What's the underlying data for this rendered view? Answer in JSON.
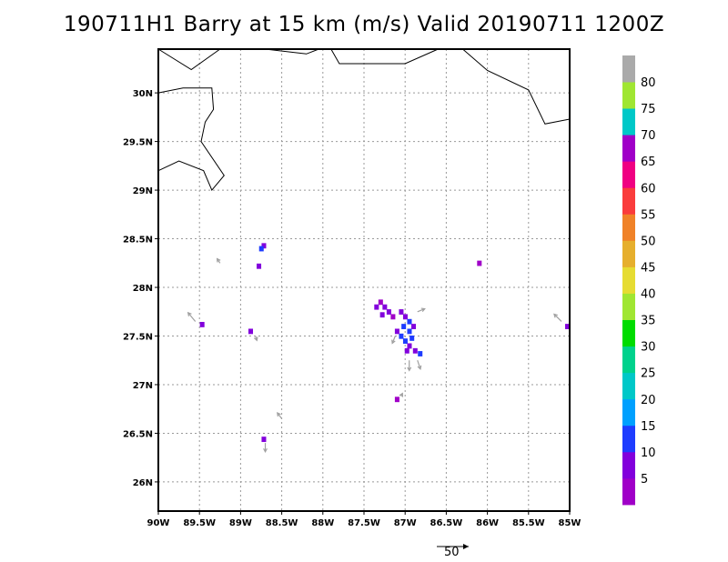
{
  "title": "190711H1 Barry at 15 km (m/s) Valid 20190711 1200Z",
  "map": {
    "lon_range": [
      -90.0,
      -85.0
    ],
    "lat_range": [
      25.7,
      30.45
    ],
    "grid": true,
    "lon_ticks": [
      {
        "value": -90.0,
        "label": "90W"
      },
      {
        "value": -89.5,
        "label": "89.5W"
      },
      {
        "value": -89.0,
        "label": "89W"
      },
      {
        "value": -88.5,
        "label": "88.5W"
      },
      {
        "value": -88.0,
        "label": "88W"
      },
      {
        "value": -87.5,
        "label": "87.5W"
      },
      {
        "value": -87.0,
        "label": "87W"
      },
      {
        "value": -86.5,
        "label": "86.5W"
      },
      {
        "value": -86.0,
        "label": "86W"
      },
      {
        "value": -85.5,
        "label": "85.5W"
      },
      {
        "value": -85.0,
        "label": "85W"
      }
    ],
    "lat_ticks": [
      {
        "value": 26.0,
        "label": "26N"
      },
      {
        "value": 26.5,
        "label": "26.5N"
      },
      {
        "value": 27.0,
        "label": "27N"
      },
      {
        "value": 27.5,
        "label": "27.5N"
      },
      {
        "value": 28.0,
        "label": "28N"
      },
      {
        "value": 28.5,
        "label": "28.5N"
      },
      {
        "value": 29.0,
        "label": "29N"
      },
      {
        "value": 29.5,
        "label": "29.5N"
      },
      {
        "value": 30.0,
        "label": "30N"
      }
    ],
    "coastlines": [
      [
        [
          -90.0,
          30.45
        ],
        [
          -89.6,
          30.24
        ],
        [
          -89.25,
          30.45
        ]
      ],
      [
        [
          -88.7,
          30.45
        ],
        [
          -88.2,
          30.4
        ],
        [
          -88.05,
          30.45
        ]
      ],
      [
        [
          -87.9,
          30.45
        ],
        [
          -87.8,
          30.3
        ],
        [
          -87.0,
          30.3
        ],
        [
          -86.6,
          30.45
        ]
      ],
      [
        [
          -86.3,
          30.45
        ],
        [
          -86.0,
          30.23
        ],
        [
          -85.5,
          30.03
        ],
        [
          -85.3,
          29.68
        ],
        [
          -85.0,
          29.73
        ]
      ],
      [
        [
          -90.0,
          30.0
        ],
        [
          -89.7,
          30.05
        ],
        [
          -89.35,
          30.05
        ],
        [
          -89.33,
          29.83
        ],
        [
          -89.43,
          29.7
        ],
        [
          -89.48,
          29.5
        ],
        [
          -89.2,
          29.15
        ],
        [
          -89.35,
          29.0
        ],
        [
          -89.45,
          29.2
        ],
        [
          -89.75,
          29.3
        ],
        [
          -90.0,
          29.2
        ]
      ]
    ],
    "wind_cells": [
      {
        "lon": -87.3,
        "lat": 27.85,
        "v": 4
      },
      {
        "lon": -87.25,
        "lat": 27.8,
        "v": 6
      },
      {
        "lon": -87.35,
        "lat": 27.8,
        "v": 7
      },
      {
        "lon": -87.2,
        "lat": 27.75,
        "v": 5
      },
      {
        "lon": -87.28,
        "lat": 27.72,
        "v": 8
      },
      {
        "lon": -87.15,
        "lat": 27.7,
        "v": 4
      },
      {
        "lon": -87.05,
        "lat": 27.75,
        "v": 6
      },
      {
        "lon": -87.0,
        "lat": 27.7,
        "v": 9
      },
      {
        "lon": -86.95,
        "lat": 27.65,
        "v": 12
      },
      {
        "lon": -87.02,
        "lat": 27.6,
        "v": 14
      },
      {
        "lon": -86.95,
        "lat": 27.55,
        "v": 11
      },
      {
        "lon": -87.05,
        "lat": 27.5,
        "v": 10
      },
      {
        "lon": -86.92,
        "lat": 27.48,
        "v": 13
      },
      {
        "lon": -87.0,
        "lat": 27.45,
        "v": 12
      },
      {
        "lon": -86.95,
        "lat": 27.4,
        "v": 9
      },
      {
        "lon": -86.88,
        "lat": 27.35,
        "v": 6
      },
      {
        "lon": -86.82,
        "lat": 27.32,
        "v": 11
      },
      {
        "lon": -86.98,
        "lat": 27.35,
        "v": 7
      },
      {
        "lon": -87.1,
        "lat": 27.55,
        "v": 5
      },
      {
        "lon": -86.9,
        "lat": 27.6,
        "v": 8
      },
      {
        "lon": -88.72,
        "lat": 28.43,
        "v": 6
      },
      {
        "lon": -88.75,
        "lat": 28.4,
        "v": 10
      },
      {
        "lon": -88.78,
        "lat": 28.22,
        "v": 5
      },
      {
        "lon": -89.47,
        "lat": 27.62,
        "v": 6
      },
      {
        "lon": -88.88,
        "lat": 27.55,
        "v": 5
      },
      {
        "lon": -88.72,
        "lat": 26.44,
        "v": 9
      },
      {
        "lon": -85.03,
        "lat": 27.6,
        "v": 6
      },
      {
        "lon": -86.1,
        "lat": 28.25,
        "v": 4
      },
      {
        "lon": -87.1,
        "lat": 26.85,
        "v": 4
      }
    ],
    "wind_vectors": [
      {
        "lon": -89.55,
        "lat": 27.65,
        "u": -10,
        "v": 12
      },
      {
        "lon": -89.25,
        "lat": 28.25,
        "u": -4,
        "v": 6
      },
      {
        "lon": -88.5,
        "lat": 26.65,
        "u": -6,
        "v": 8
      },
      {
        "lon": -85.1,
        "lat": 27.65,
        "u": -10,
        "v": 10
      },
      {
        "lon": -86.95,
        "lat": 27.25,
        "u": 0,
        "v": -14
      },
      {
        "lon": -86.85,
        "lat": 27.25,
        "u": 4,
        "v": -12
      },
      {
        "lon": -86.85,
        "lat": 27.75,
        "u": 10,
        "v": 4
      },
      {
        "lon": -88.7,
        "lat": 26.4,
        "u": 0,
        "v": -12
      },
      {
        "lon": -88.82,
        "lat": 27.5,
        "u": 2,
        "v": -6
      },
      {
        "lon": -87.05,
        "lat": 26.88,
        "u": 2,
        "v": 4
      },
      {
        "lon": -87.12,
        "lat": 27.5,
        "u": -4,
        "v": -10
      }
    ]
  },
  "colorbar": {
    "colors": [
      "#a000c8",
      "#8200dc",
      "#1e3cff",
      "#00a0ff",
      "#00c8c8",
      "#00d28c",
      "#00dc00",
      "#a0e632",
      "#e6dc32",
      "#e6af2d",
      "#f08228",
      "#fa3c3c",
      "#f00082",
      "#a000c8",
      "#00c8c8",
      "#a0e632",
      "#aaaaaa"
    ],
    "labels": [
      "5",
      "10",
      "15",
      "20",
      "25",
      "30",
      "35",
      "40",
      "45",
      "50",
      "55",
      "60",
      "65",
      "70",
      "75",
      "80"
    ]
  },
  "vector_scale": {
    "label": "50"
  }
}
